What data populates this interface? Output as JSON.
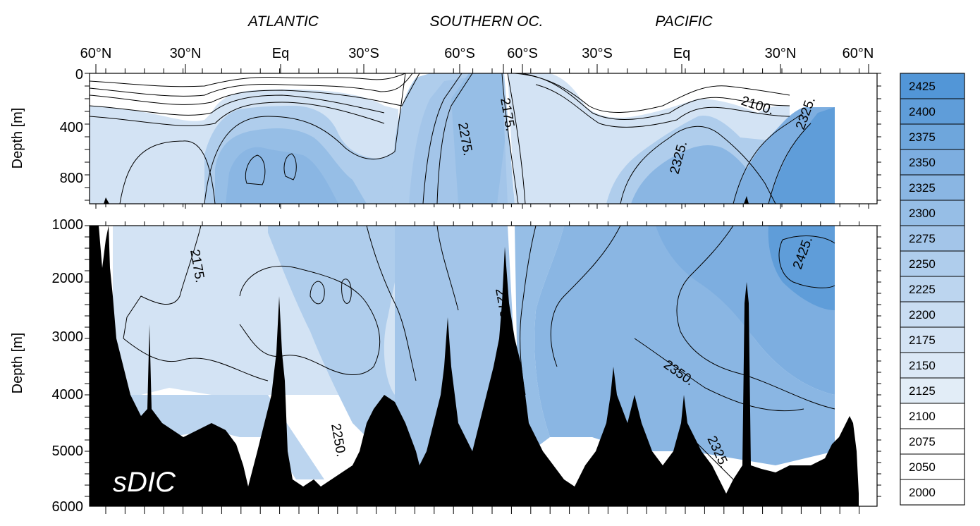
{
  "chart_data": {
    "type": "heatmap",
    "title": "sDIC",
    "basins": [
      "ATLANTIC",
      "SOUTHERN OC.",
      "PACIFIC"
    ],
    "x_ticks": [
      "60°N",
      "30°N",
      "Eq",
      "30°S",
      "60°S",
      "60°S",
      "30°S",
      "Eq",
      "30°N",
      "60°N"
    ],
    "ylabel": "Depth [m]",
    "upper_panel": {
      "y_ticks": [
        "0",
        "400",
        "800"
      ],
      "ylim": [
        0,
        1000
      ]
    },
    "lower_panel": {
      "y_ticks": [
        "1000",
        "2000",
        "3000",
        "4000",
        "5000",
        "6000"
      ],
      "ylim": [
        1000,
        6000
      ]
    },
    "colorbar": {
      "levels": [
        "2425",
        "2400",
        "2375",
        "2350",
        "2325",
        "2300",
        "2275",
        "2250",
        "2225",
        "2200",
        "2175",
        "2150",
        "2125",
        "2100",
        "2075",
        "2050",
        "2000"
      ],
      "colors": {
        "2425": "#5296d7",
        "2400": "#5f9dd9",
        "2375": "#6ea6dc",
        "2350": "#7daee0",
        "2325": "#8ab6e3",
        "2300": "#96bee6",
        "2275": "#a3c5e9",
        "2250": "#afcdec",
        "2225": "#bcd5ef",
        "2200": "#c9ddf2",
        "2175": "#d3e3f4",
        "2150": "#dbe8f6",
        "2125": "#e2edf7",
        "2100": "#ffffff",
        "2075": "#ffffff",
        "2050": "#ffffff",
        "2000": "#ffffff"
      }
    },
    "contour_labels": [
      "2100",
      "2175",
      "2275",
      "2325",
      "2325",
      "2175",
      "2275",
      "2250",
      "2350",
      "2325",
      "2425"
    ],
    "seafloor_color": "#000000"
  }
}
